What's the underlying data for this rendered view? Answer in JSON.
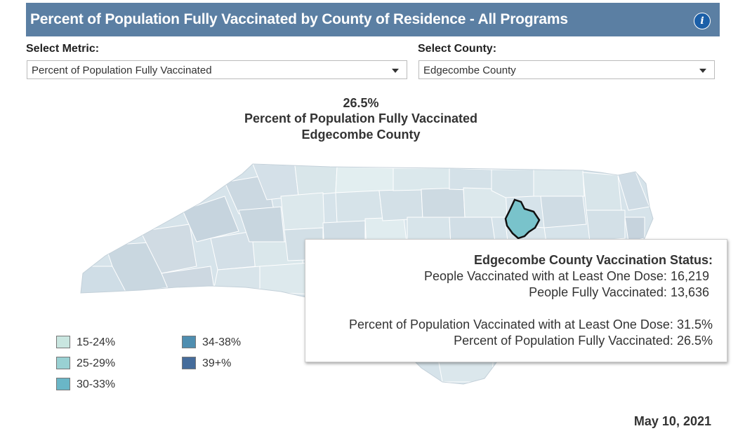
{
  "header": {
    "title": "Percent of Population Fully Vaccinated by County of Residence - All Programs",
    "info_icon": "info-icon"
  },
  "metric": {
    "label": "Select Metric:",
    "value": "Percent of Population Fully Vaccinated"
  },
  "county": {
    "label": "Select County:",
    "value": "Edgecombe County"
  },
  "headline": {
    "value": "26.5%",
    "metric": "Percent of Population Fully Vaccinated",
    "county": "Edgecombe County"
  },
  "map": {
    "selected_county": "Edgecombe County",
    "selected_color": "#79c3cb"
  },
  "tooltip": {
    "title": "Edgecombe County Vaccination Status:",
    "one_dose_label": "People Vaccinated with at Least One Dose:",
    "one_dose_value": "16,219",
    "fully_label": "People Fully Vaccinated:",
    "fully_value": "13,636",
    "pct_one_dose_label": "Percent of Population Vaccinated with at Least One Dose:",
    "pct_one_dose_value": "31.5%",
    "pct_fully_label": "Percent of Population Fully Vaccinated:",
    "pct_fully_value": "26.5%"
  },
  "legend": [
    {
      "label": "15-24%",
      "color": "#c9e6e0"
    },
    {
      "label": "25-29%",
      "color": "#99d1d3"
    },
    {
      "label": "30-33%",
      "color": "#6ab6c7"
    },
    {
      "label": "34-38%",
      "color": "#4f8eb0"
    },
    {
      "label": "39+%",
      "color": "#456c9b"
    }
  ],
  "date": "May 10, 2021"
}
